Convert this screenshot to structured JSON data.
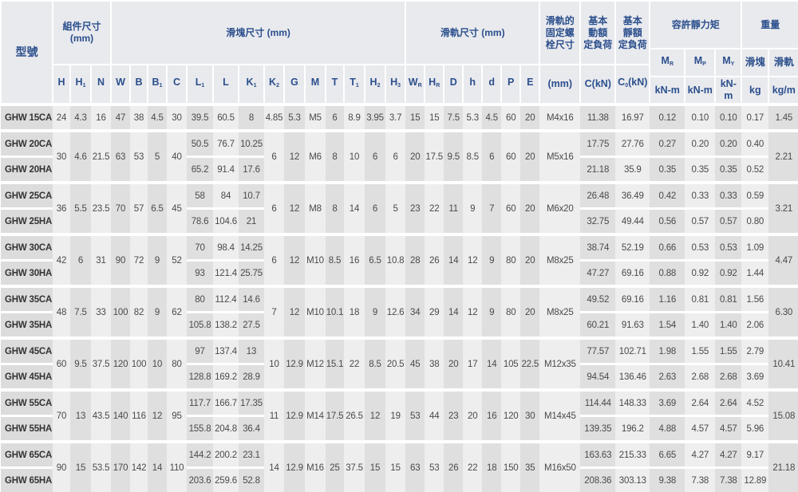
{
  "header": {
    "model": "型號",
    "assembly": {
      "title": "組件尺寸",
      "unit": "(mm)"
    },
    "block": "滑塊尺寸 (mm)",
    "rail": "滑軌尺寸 (mm)",
    "bolt": {
      "lines": [
        "滑軌的",
        "固定螺",
        "栓尺寸"
      ],
      "unit": "(mm)"
    },
    "dynamic": {
      "lines": [
        "基本",
        "動額",
        "定負荷"
      ],
      "unit": "C(kN)"
    },
    "static": {
      "lines": [
        "基本",
        "靜額",
        "定負荷"
      ],
      "unit_main": "C",
      "unit_sub": "0",
      "unit_tail": "(kN)"
    },
    "moment": {
      "title": "容許靜力矩",
      "cols": [
        {
          "main": "M",
          "sub": "R",
          "unit": "kN-m"
        },
        {
          "main": "M",
          "sub": "P",
          "unit": "kN-m"
        },
        {
          "main": "M",
          "sub": "Y",
          "unit": "kN-m"
        }
      ]
    },
    "weight": {
      "title": "重量",
      "cols": [
        {
          "label": "滑塊",
          "unit": "kg"
        },
        {
          "label": "滑軌",
          "unit": "kg/m"
        }
      ]
    },
    "dims": [
      {
        "main": "H",
        "sub": ""
      },
      {
        "main": "H",
        "sub": "1"
      },
      {
        "main": "N",
        "sub": ""
      },
      {
        "main": "W",
        "sub": ""
      },
      {
        "main": "B",
        "sub": ""
      },
      {
        "main": "B",
        "sub": "1"
      },
      {
        "main": "C",
        "sub": ""
      },
      {
        "main": "L",
        "sub": "1"
      },
      {
        "main": "L",
        "sub": ""
      },
      {
        "main": "K",
        "sub": "1"
      },
      {
        "main": "K",
        "sub": "2"
      },
      {
        "main": "G",
        "sub": ""
      },
      {
        "main": "M",
        "sub": ""
      },
      {
        "main": "T",
        "sub": ""
      },
      {
        "main": "T",
        "sub": "1"
      },
      {
        "main": "H",
        "sub": "2"
      },
      {
        "main": "H",
        "sub": "3"
      },
      {
        "main": "W",
        "sub": "R"
      },
      {
        "main": "H",
        "sub": "R"
      },
      {
        "main": "D",
        "sub": ""
      },
      {
        "main": "h",
        "sub": ""
      },
      {
        "main": "d",
        "sub": ""
      },
      {
        "main": "P",
        "sub": ""
      },
      {
        "main": "E",
        "sub": ""
      }
    ]
  },
  "groups": [
    {
      "shared": {
        "H": "24",
        "H1": "4.3",
        "N": "16",
        "W": "47",
        "B": "38",
        "B1": "4.5",
        "C": "30",
        "K2": "4.85",
        "G": "5.3",
        "M": "M5",
        "T": "6",
        "T1": "8.9",
        "H2": "3.95",
        "H3": "3.7",
        "WR": "15",
        "HR": "15",
        "D": "7.5",
        "h": "5.3",
        "d": "4.5",
        "P": "60",
        "E": "20",
        "bolt": "M4x16",
        "rail": "1.45"
      },
      "variants": [
        {
          "model": "GHW 15CA",
          "L1": "39.5",
          "L": "60.5",
          "K1": "8",
          "Cdyn": "11.38",
          "C0": "16.97",
          "MR": "0.12",
          "MP": "0.10",
          "MY": "0.10",
          "block": "0.17"
        }
      ]
    },
    {
      "shared": {
        "H": "30",
        "H1": "4.6",
        "N": "21.5",
        "W": "63",
        "B": "53",
        "B1": "5",
        "C": "40",
        "K2": "6",
        "G": "12",
        "M": "M6",
        "T": "8",
        "T1": "10",
        "H2": "6",
        "H3": "6",
        "WR": "20",
        "HR": "17.5",
        "D": "9.5",
        "h": "8.5",
        "d": "6",
        "P": "60",
        "E": "20",
        "bolt": "M5x16",
        "rail": "2.21"
      },
      "variants": [
        {
          "model": "GHW 20CA",
          "L1": "50.5",
          "L": "76.7",
          "K1": "10.25",
          "Cdyn": "17.75",
          "C0": "27.76",
          "MR": "0.27",
          "MP": "0.20",
          "MY": "0.20",
          "block": "0.40"
        },
        {
          "model": "GHW 20HA",
          "L1": "65.2",
          "L": "91.4",
          "K1": "17.6",
          "Cdyn": "21.18",
          "C0": "35.9",
          "MR": "0.35",
          "MP": "0.35",
          "MY": "0.35",
          "block": "0.52"
        }
      ]
    },
    {
      "shared": {
        "H": "36",
        "H1": "5.5",
        "N": "23.5",
        "W": "70",
        "B": "57",
        "B1": "6.5",
        "C": "45",
        "K2": "6",
        "G": "12",
        "M": "M8",
        "T": "8",
        "T1": "14",
        "H2": "6",
        "H3": "5",
        "WR": "23",
        "HR": "22",
        "D": "11",
        "h": "9",
        "d": "7",
        "P": "60",
        "E": "20",
        "bolt": "M6x20",
        "rail": "3.21"
      },
      "variants": [
        {
          "model": "GHW 25CA",
          "L1": "58",
          "L": "84",
          "K1": "10.7",
          "Cdyn": "26.48",
          "C0": "36.49",
          "MR": "0.42",
          "MP": "0.33",
          "MY": "0.33",
          "block": "0.59"
        },
        {
          "model": "GHW 25HA",
          "L1": "78.6",
          "L": "104.6",
          "K1": "21",
          "Cdyn": "32.75",
          "C0": "49.44",
          "MR": "0.56",
          "MP": "0.57",
          "MY": "0.57",
          "block": "0.80"
        }
      ]
    },
    {
      "shared": {
        "H": "42",
        "H1": "6",
        "N": "31",
        "W": "90",
        "B": "72",
        "B1": "9",
        "C": "52",
        "K2": "6",
        "G": "12",
        "M": "M10",
        "T": "8.5",
        "T1": "16",
        "H2": "6.5",
        "H3": "10.8",
        "WR": "28",
        "HR": "26",
        "D": "14",
        "h": "12",
        "d": "9",
        "P": "80",
        "E": "20",
        "bolt": "M8x25",
        "rail": "4.47"
      },
      "variants": [
        {
          "model": "GHW 30CA",
          "L1": "70",
          "L": "98.4",
          "K1": "14.25",
          "Cdyn": "38.74",
          "C0": "52.19",
          "MR": "0.66",
          "MP": "0.53",
          "MY": "0.53",
          "block": "1.09"
        },
        {
          "model": "GHW 30HA",
          "L1": "93",
          "L": "121.4",
          "K1": "25.75",
          "Cdyn": "47.27",
          "C0": "69.16",
          "MR": "0.88",
          "MP": "0.92",
          "MY": "0.92",
          "block": "1.44"
        }
      ]
    },
    {
      "shared": {
        "H": "48",
        "H1": "7.5",
        "N": "33",
        "W": "100",
        "B": "82",
        "B1": "9",
        "C": "62",
        "K2": "7",
        "G": "12",
        "M": "M10",
        "T": "10.1",
        "T1": "18",
        "H2": "9",
        "H3": "12.6",
        "WR": "34",
        "HR": "29",
        "D": "14",
        "h": "12",
        "d": "9",
        "P": "80",
        "E": "20",
        "bolt": "M8x25",
        "rail": "6.30"
      },
      "variants": [
        {
          "model": "GHW 35CA",
          "L1": "80",
          "L": "112.4",
          "K1": "14.6",
          "Cdyn": "49.52",
          "C0": "69.16",
          "MR": "1.16",
          "MP": "0.81",
          "MY": "0.81",
          "block": "1.56"
        },
        {
          "model": "GHW 35HA",
          "L1": "105.8",
          "L": "138.2",
          "K1": "27.5",
          "Cdyn": "60.21",
          "C0": "91.63",
          "MR": "1.54",
          "MP": "1.40",
          "MY": "1.40",
          "block": "2.06"
        }
      ]
    },
    {
      "shared": {
        "H": "60",
        "H1": "9.5",
        "N": "37.5",
        "W": "120",
        "B": "100",
        "B1": "10",
        "C": "80",
        "K2": "10",
        "G": "12.9",
        "M": "M12",
        "T": "15.1",
        "T1": "22",
        "H2": "8.5",
        "H3": "20.5",
        "WR": "45",
        "HR": "38",
        "D": "20",
        "h": "17",
        "d": "14",
        "P": "105",
        "E": "22.5",
        "bolt": "M12x35",
        "rail": "10.41"
      },
      "variants": [
        {
          "model": "GHW 45CA",
          "L1": "97",
          "L": "137.4",
          "K1": "13",
          "Cdyn": "77.57",
          "C0": "102.71",
          "MR": "1.98",
          "MP": "1.55",
          "MY": "1.55",
          "block": "2.79"
        },
        {
          "model": "GHW 45HA",
          "L1": "128.8",
          "L": "169.2",
          "K1": "28.9",
          "Cdyn": "94.54",
          "C0": "136.46",
          "MR": "2.63",
          "MP": "2.68",
          "MY": "2.68",
          "block": "3.69"
        }
      ]
    },
    {
      "shared": {
        "H": "70",
        "H1": "13",
        "N": "43.5",
        "W": "140",
        "B": "116",
        "B1": "12",
        "C": "95",
        "K2": "11",
        "G": "12.9",
        "M": "M14",
        "T": "17.5",
        "T1": "26.5",
        "H2": "12",
        "H3": "19",
        "WR": "53",
        "HR": "44",
        "D": "23",
        "h": "20",
        "d": "16",
        "P": "120",
        "E": "30",
        "bolt": "M14x45",
        "rail": "15.08"
      },
      "variants": [
        {
          "model": "GHW 55CA",
          "L1": "117.7",
          "L": "166.7",
          "K1": "17.35",
          "Cdyn": "114.44",
          "C0": "148.33",
          "MR": "3.69",
          "MP": "2.64",
          "MY": "2.64",
          "block": "4.52"
        },
        {
          "model": "GHW 55HA",
          "L1": "155.8",
          "L": "204.8",
          "K1": "36.4",
          "Cdyn": "139.35",
          "C0": "196.2",
          "MR": "4.88",
          "MP": "4.57",
          "MY": "4.57",
          "block": "5.96"
        }
      ]
    },
    {
      "shared": {
        "H": "90",
        "H1": "15",
        "N": "53.5",
        "W": "170",
        "B": "142",
        "B1": "14",
        "C": "110",
        "K2": "14",
        "G": "12.9",
        "M": "M16",
        "T": "25",
        "T1": "37.5",
        "H2": "15",
        "H3": "15",
        "WR": "63",
        "HR": "53",
        "D": "26",
        "h": "22",
        "d": "18",
        "P": "150",
        "E": "35",
        "bolt": "M16x50",
        "rail": "21.18"
      },
      "variants": [
        {
          "model": "GHW 65CA",
          "L1": "144.2",
          "L": "200.2",
          "K1": "23.1",
          "Cdyn": "163.63",
          "C0": "215.33",
          "MR": "6.65",
          "MP": "4.27",
          "MY": "4.27",
          "block": "9.17"
        },
        {
          "model": "GHW 65HA",
          "L1": "203.6",
          "L": "259.6",
          "K1": "52.8",
          "Cdyn": "208.36",
          "C0": "303.13",
          "MR": "9.38",
          "MP": "7.38",
          "MY": "7.38",
          "block": "12.89"
        }
      ]
    }
  ]
}
